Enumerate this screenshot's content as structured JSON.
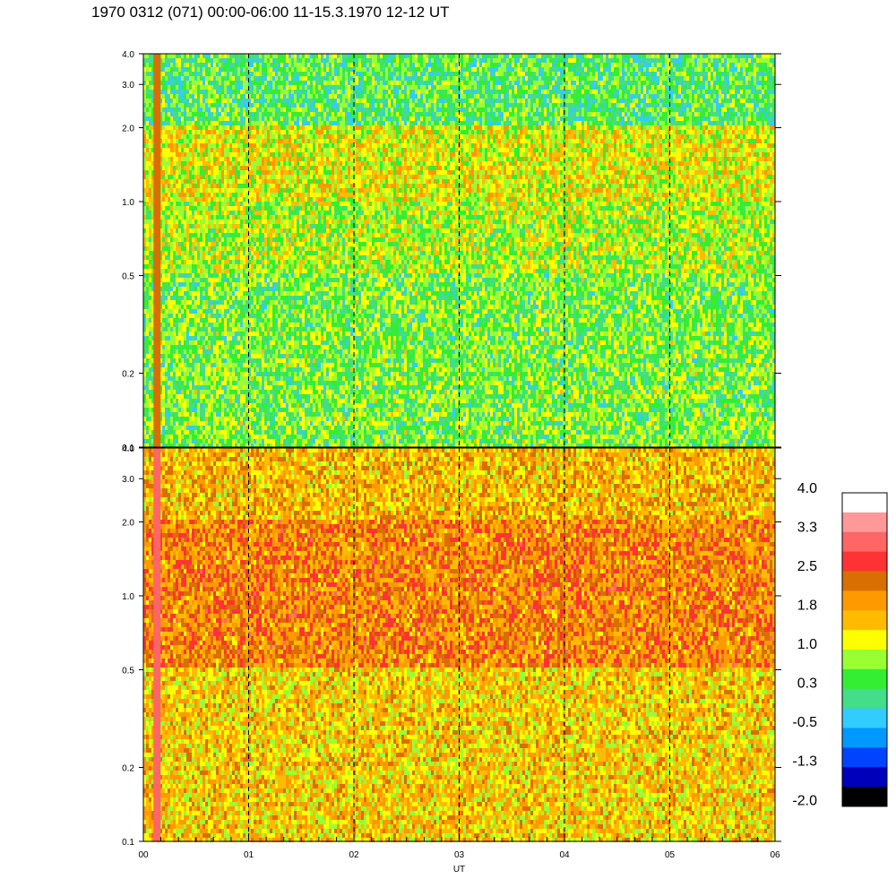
{
  "title": "1970 0312 (071) 00:00-06:00 11-15.3.1970  12-12 UT",
  "chart_data": {
    "type": "heatmap",
    "xlabel": "UT",
    "x_ticks": [
      "00",
      "01",
      "02",
      "03",
      "04",
      "05",
      "06"
    ],
    "xlim": [
      0,
      6
    ],
    "y_scale": "log",
    "panels": [
      {
        "name": "upper",
        "ylim": [
          0.1,
          4.0
        ],
        "y_ticks": [
          "0.1",
          "0.2",
          "0.5",
          "1.0",
          "2.0",
          "3.0",
          "4.0"
        ],
        "y_tick_values": [
          0.1,
          0.2,
          0.5,
          1.0,
          2.0,
          3.0,
          4.0
        ],
        "bands": [
          {
            "from": 0.1,
            "to": 0.5,
            "value": 0.6
          },
          {
            "from": 0.5,
            "to": 1.0,
            "value": 0.9
          },
          {
            "from": 1.0,
            "to": 2.0,
            "value": 1.2
          },
          {
            "from": 2.0,
            "to": 4.0,
            "value": 0.4
          }
        ]
      },
      {
        "name": "lower",
        "ylim": [
          0.1,
          4.0
        ],
        "y_ticks": [
          "0.1",
          "0.2",
          "0.5",
          "1.0",
          "2.0",
          "3.0",
          "4.0"
        ],
        "y_tick_values": [
          0.1,
          0.2,
          0.5,
          1.0,
          2.0,
          3.0,
          4.0
        ],
        "bands": [
          {
            "from": 0.1,
            "to": 0.5,
            "value": 1.5
          },
          {
            "from": 0.5,
            "to": 2.0,
            "value": 2.1
          },
          {
            "from": 2.0,
            "to": 4.0,
            "value": 1.7
          }
        ]
      }
    ],
    "colorbar": {
      "labels": [
        "4.0",
        "3.3",
        "2.5",
        "1.8",
        "1.0",
        "0.3",
        "-0.5",
        "-1.3",
        "-2.0"
      ],
      "colors": [
        "#ffffff",
        "#ff9999",
        "#ff6666",
        "#ff3333",
        "#d96f00",
        "#ff9900",
        "#ffbb00",
        "#ffff00",
        "#99ff33",
        "#33ee33",
        "#44dd88",
        "#33ccff",
        "#0099ff",
        "#0044ff",
        "#0000bb",
        "#000000"
      ]
    },
    "grid": "vertical dashed lines at each hour"
  }
}
